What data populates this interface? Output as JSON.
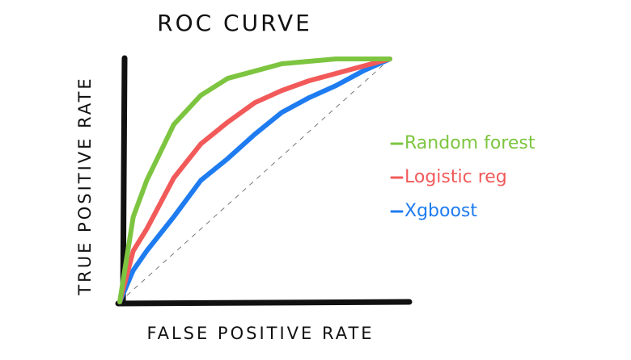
{
  "chart_data": {
    "type": "line",
    "title": "ROC CURVE",
    "x_label": "FALSE POSITIVE RATE",
    "y_label": "TRUE POSITIVE RATE",
    "xlim": [
      0,
      1
    ],
    "ylim": [
      0,
      1
    ],
    "x": [
      0,
      0.05,
      0.1,
      0.2,
      0.3,
      0.4,
      0.5,
      0.6,
      0.7,
      0.8,
      0.9,
      1
    ],
    "series": [
      {
        "name": "Random forest",
        "color": "#7dc540",
        "values": [
          0,
          0.35,
          0.5,
          0.73,
          0.85,
          0.92,
          0.95,
          0.98,
          0.99,
          1,
          1,
          1
        ]
      },
      {
        "name": "Logistic reg",
        "color": "#f25a5a",
        "values": [
          0,
          0.21,
          0.3,
          0.51,
          0.65,
          0.74,
          0.82,
          0.87,
          0.91,
          0.94,
          0.97,
          1
        ]
      },
      {
        "name": "Xgboost",
        "color": "#1e7cf0",
        "values": [
          0,
          0.13,
          0.21,
          0.35,
          0.5,
          0.59,
          0.69,
          0.78,
          0.84,
          0.89,
          0.95,
          1
        ]
      }
    ]
  }
}
